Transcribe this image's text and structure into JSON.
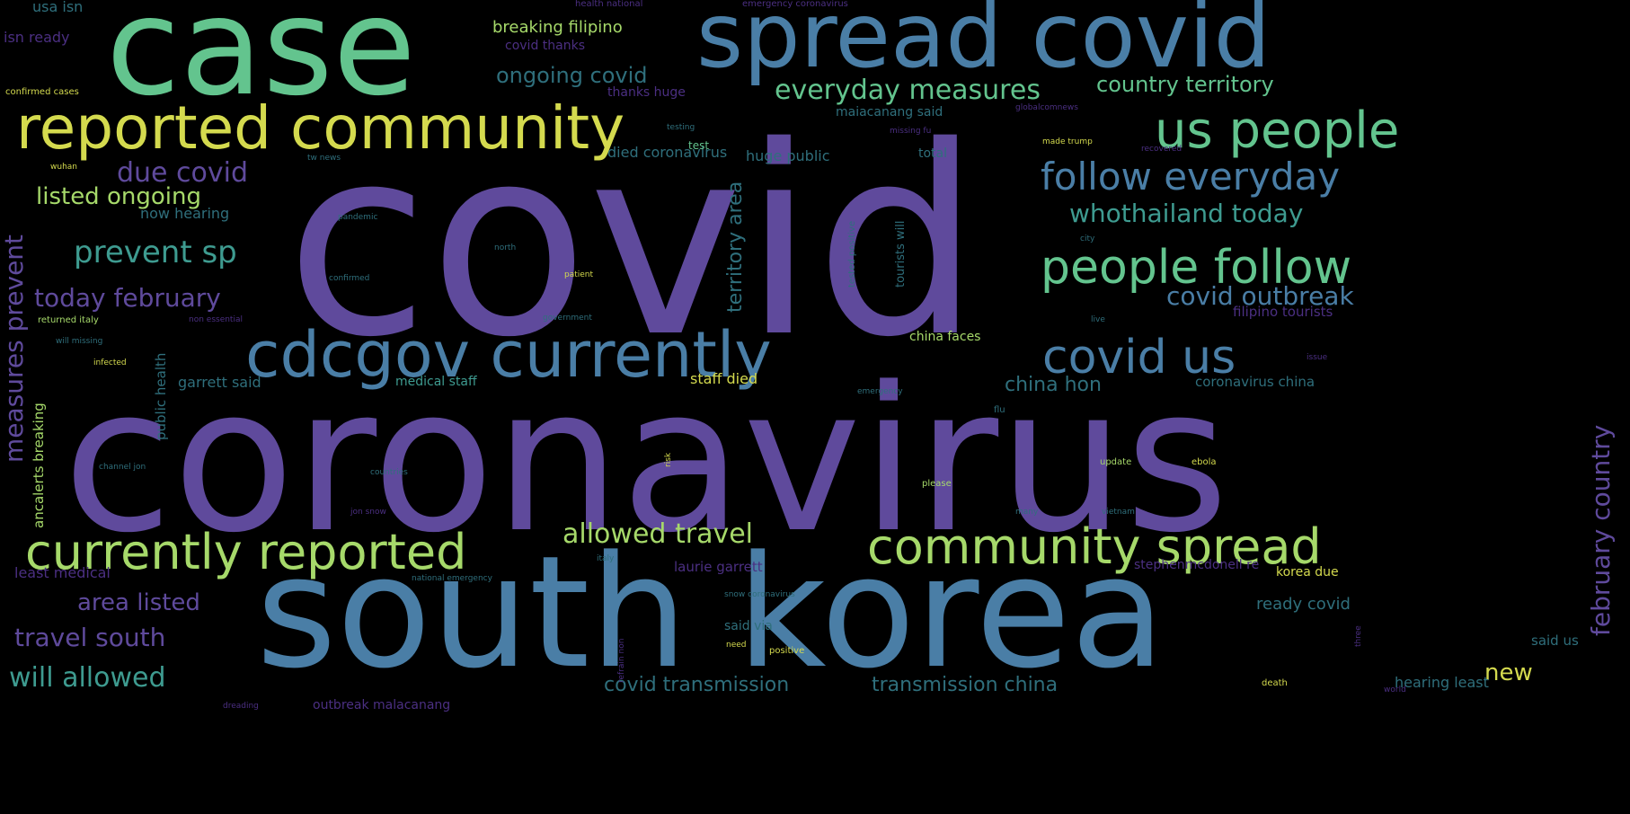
{
  "wordcloud": {
    "words": {
      "covid": "covid",
      "coronavirus": "coronavirus",
      "south_korea": "south korea",
      "case": "case",
      "spread_covid": "spread covid",
      "reported_community": "reported community",
      "cdcgov_currently": "cdcgov currently",
      "currently_reported": "currently reported",
      "community_spread": "community spread",
      "us_people": "us people",
      "people_follow": "people follow",
      "follow_everyday": "follow everyday",
      "covid_us": "covid us",
      "everyday_measures": "everyday measures",
      "whothailand_today": "whothailand today",
      "covid_outbreak": "covid outbreak",
      "today_february": "today february",
      "prevent_sp": "prevent sp",
      "due_covid": "due covid",
      "listed_ongoing": "listed ongoing",
      "ongoing_covid": "ongoing covid",
      "breaking_filipino": "breaking filipino",
      "country_territory": "country territory",
      "allowed_travel": "allowed travel",
      "area_listed": "area listed",
      "travel_south": "travel south",
      "will_allowed": "will allowed",
      "covid_transmission": "covid transmission",
      "transmission_china": "transmission china",
      "new": "new",
      "china_hon": "china hon",
      "measures_prevent": "measures prevent",
      "february_country": "february country",
      "territory_area": "territory area",
      "huge_public": "huge public",
      "died_coronavirus": "died coronavirus",
      "maiacanang_said": "maiacanang said",
      "covid_thanks": "covid thanks",
      "thanks_huge": "thanks huge",
      "isn_ready": "isn ready",
      "usa_isn": "usa isn",
      "now_hearing": "now hearing",
      "filipino_tourists": "filipino tourists",
      "china_faces": "china faces",
      "staff_died": "staff died",
      "medical_staff": "medical staff",
      "garrett_said": "garrett said",
      "coronavirus_china": "coronavirus china",
      "laurie_garrett": "laurie garrett",
      "ready_covid": "ready covid",
      "said_via": "said via",
      "said_us": "said us",
      "hearing_least": "hearing least",
      "korea_due": "korea due",
      "least_medical": "least medical",
      "outbreak_malacanang": "outbreak malacanang",
      "public_health": "public health",
      "ancalerts_breaking": "ancalerts breaking",
      "tourists_will": "tourists will",
      "test": "test",
      "total": "total",
      "confirmed_cases": "confirmed cases",
      "stephenmcdonell_re": "stephenmcdonell re",
      "pandemic": "pandemic",
      "patient": "patient",
      "government": "government",
      "confirmed": "confirmed",
      "infected": "infected",
      "returned_italy": "returned italy",
      "will_missing": "will missing",
      "update": "update",
      "ebola": "ebola",
      "please": "please",
      "positive": "positive",
      "death": "death",
      "countries": "countries",
      "tested_positive": "tested positive",
      "jon_snow": "jon snow",
      "channel_jon": "channel jon",
      "risk": "risk",
      "need": "need",
      "emergency": "emergency",
      "national_emergency": "national emergency",
      "snow_coronavirus": "snow coronavirus",
      "italy": "italy",
      "city": "city",
      "vietnam": "vietnam",
      "many": "many",
      "flu": "flu",
      "north": "north",
      "testing": "testing",
      "wuhan": "wuhan",
      "made_trump": "made trump",
      "recovered": "recovered",
      "globalcomnews": "globalcomnews",
      "missing_fu": "missing fu",
      "tw_news": "tw news",
      "non_essential": "non essential",
      "live": "live",
      "issue": "issue",
      "three": "three",
      "world": "world",
      "dreading": "dreading",
      "refrain_non": "refrain non",
      "health_national": "health national",
      "emergency_coronavirus": "emergency coronavirus"
    }
  }
}
